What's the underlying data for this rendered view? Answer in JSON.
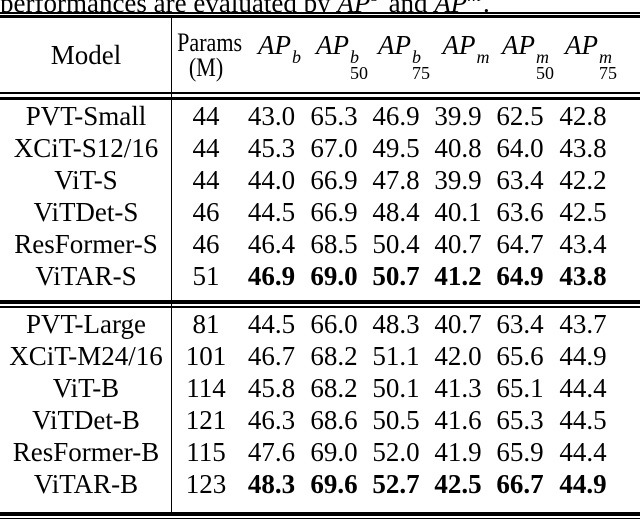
{
  "caption": {
    "prefix": "performances are evaluated by ",
    "metric1": {
      "base": "AP",
      "sup": "b"
    },
    "conj": " and ",
    "metric2": {
      "base": "AP",
      "sup": "m"
    },
    "suffix": "."
  },
  "table": {
    "header": {
      "model": "Model",
      "params_line1": "Params",
      "params_line2": "(M)",
      "metrics": [
        {
          "base": "AP",
          "sup": "b",
          "sub": ""
        },
        {
          "base": "AP",
          "sup": "b",
          "sub": "50"
        },
        {
          "base": "AP",
          "sup": "b",
          "sub": "75"
        },
        {
          "base": "AP",
          "sup": "m",
          "sub": ""
        },
        {
          "base": "AP",
          "sup": "m",
          "sub": "50"
        },
        {
          "base": "AP",
          "sup": "m",
          "sub": "75"
        }
      ]
    },
    "groups": [
      {
        "rows": [
          {
            "model": "PVT-Small",
            "params": "44",
            "values": [
              "43.0",
              "65.3",
              "46.9",
              "39.9",
              "62.5",
              "42.8"
            ],
            "bold": false
          },
          {
            "model": "XCiT-S12/16",
            "params": "44",
            "values": [
              "45.3",
              "67.0",
              "49.5",
              "40.8",
              "64.0",
              "43.8"
            ],
            "bold": false
          },
          {
            "model": "ViT-S",
            "params": "44",
            "values": [
              "44.0",
              "66.9",
              "47.8",
              "39.9",
              "63.4",
              "42.2"
            ],
            "bold": false
          },
          {
            "model": "ViTDet-S",
            "params": "46",
            "values": [
              "44.5",
              "66.9",
              "48.4",
              "40.1",
              "63.6",
              "42.5"
            ],
            "bold": false
          },
          {
            "model": "ResFormer-S",
            "params": "46",
            "values": [
              "46.4",
              "68.5",
              "50.4",
              "40.7",
              "64.7",
              "43.4"
            ],
            "bold": false
          },
          {
            "model": "ViTAR-S",
            "params": "51",
            "values": [
              "46.9",
              "69.0",
              "50.7",
              "41.2",
              "64.9",
              "43.8"
            ],
            "bold": true
          }
        ]
      },
      {
        "rows": [
          {
            "model": "PVT-Large",
            "params": "81",
            "values": [
              "44.5",
              "66.0",
              "48.3",
              "40.7",
              "63.4",
              "43.7"
            ],
            "bold": false
          },
          {
            "model": "XCiT-M24/16",
            "params": "101",
            "values": [
              "46.7",
              "68.2",
              "51.1",
              "42.0",
              "65.6",
              "44.9"
            ],
            "bold": false
          },
          {
            "model": "ViT-B",
            "params": "114",
            "values": [
              "45.8",
              "68.2",
              "50.1",
              "41.3",
              "65.1",
              "44.4"
            ],
            "bold": false
          },
          {
            "model": "ViTDet-B",
            "params": "121",
            "values": [
              "46.3",
              "68.6",
              "50.5",
              "41.6",
              "65.3",
              "44.5"
            ],
            "bold": false
          },
          {
            "model": "ResFormer-B",
            "params": "115",
            "values": [
              "47.6",
              "69.0",
              "52.0",
              "41.9",
              "65.9",
              "44.4"
            ],
            "bold": false
          },
          {
            "model": "ViTAR-B",
            "params": "123",
            "values": [
              "48.3",
              "69.6",
              "52.7",
              "42.5",
              "66.7",
              "44.9"
            ],
            "bold": true
          }
        ]
      }
    ]
  },
  "colors": {
    "background": "#ffffff",
    "text": "#000000",
    "rule": "#000000"
  }
}
